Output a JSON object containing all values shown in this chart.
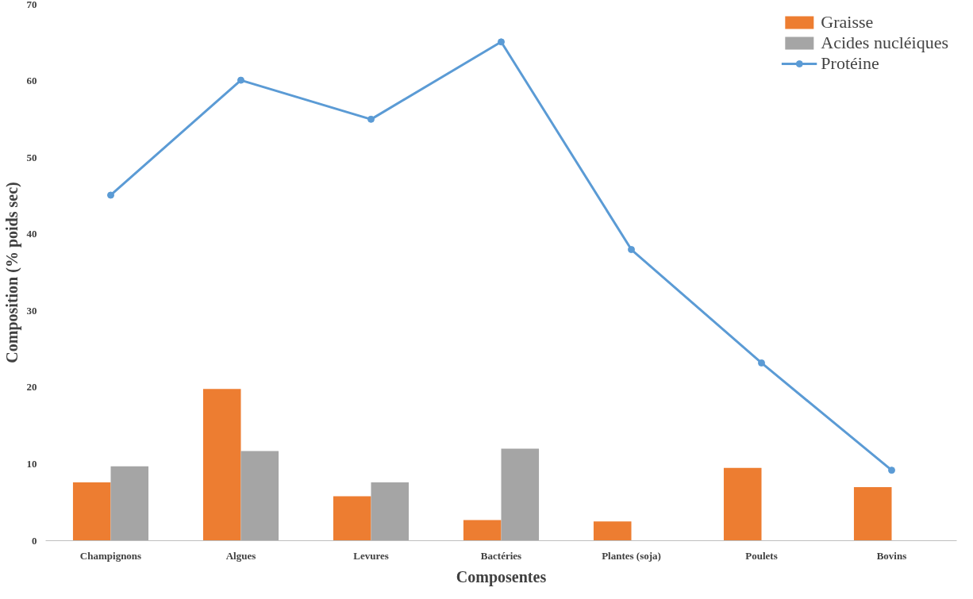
{
  "chart_data": {
    "type": "bar",
    "xlabel": "Composentes",
    "ylabel": "Composition (% poids sec)",
    "categories": [
      "Champignons",
      "Algues",
      "Levures",
      "Bactéries",
      "Plantes (soja)",
      "Poulets",
      "Bovins"
    ],
    "series": [
      {
        "name": "Graisse",
        "color": "#ed7d31",
        "values": [
          7.6,
          19.8,
          5.8,
          2.7,
          2.5,
          9.5,
          7.0
        ]
      },
      {
        "name": "Acides nucléiques",
        "color": "#a5a5a5",
        "values": [
          9.7,
          11.7,
          7.6,
          12,
          null,
          null,
          null
        ]
      },
      {
        "name": "Protéine",
        "color": "#5b9bd5",
        "type": "line",
        "marker": "circle",
        "values": [
          45.1,
          60.1,
          55,
          65.1,
          38,
          23.2,
          9.2
        ]
      }
    ],
    "ylim": [
      0,
      70
    ],
    "yticks": [
      0,
      10,
      20,
      30,
      40,
      50,
      60,
      70
    ],
    "grid": false,
    "legend": "top right"
  }
}
